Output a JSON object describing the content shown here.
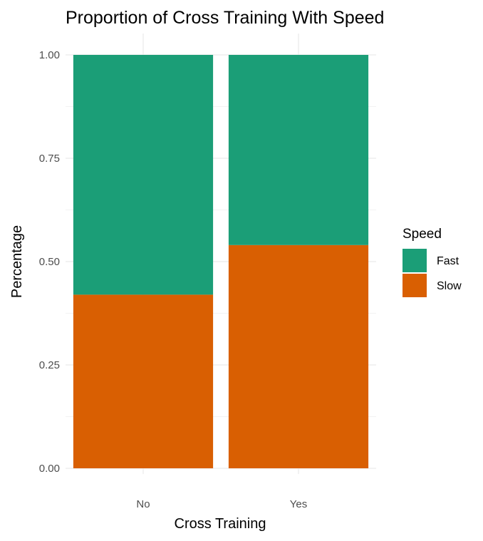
{
  "chart_data": {
    "type": "bar",
    "stacked": true,
    "title": "Proportion of Cross Training With Speed",
    "xlabel": "Cross Training",
    "ylabel": "Percentage",
    "categories": [
      "No",
      "Yes"
    ],
    "series": [
      {
        "name": "Slow",
        "values": [
          0.42,
          0.54
        ],
        "color": "#d95f02"
      },
      {
        "name": "Fast",
        "values": [
          0.58,
          0.46
        ],
        "color": "#1b9e77"
      }
    ],
    "ylim": [
      0,
      1
    ],
    "yticks": [
      "0.00",
      "0.25",
      "0.50",
      "0.75",
      "1.00"
    ],
    "ytick_values": [
      0,
      0.25,
      0.5,
      0.75,
      1
    ],
    "grid": true,
    "legend": {
      "title": "Speed",
      "position": "right",
      "entries": [
        {
          "label": "Fast",
          "color": "#1b9e77"
        },
        {
          "label": "Slow",
          "color": "#d95f02"
        }
      ]
    }
  }
}
